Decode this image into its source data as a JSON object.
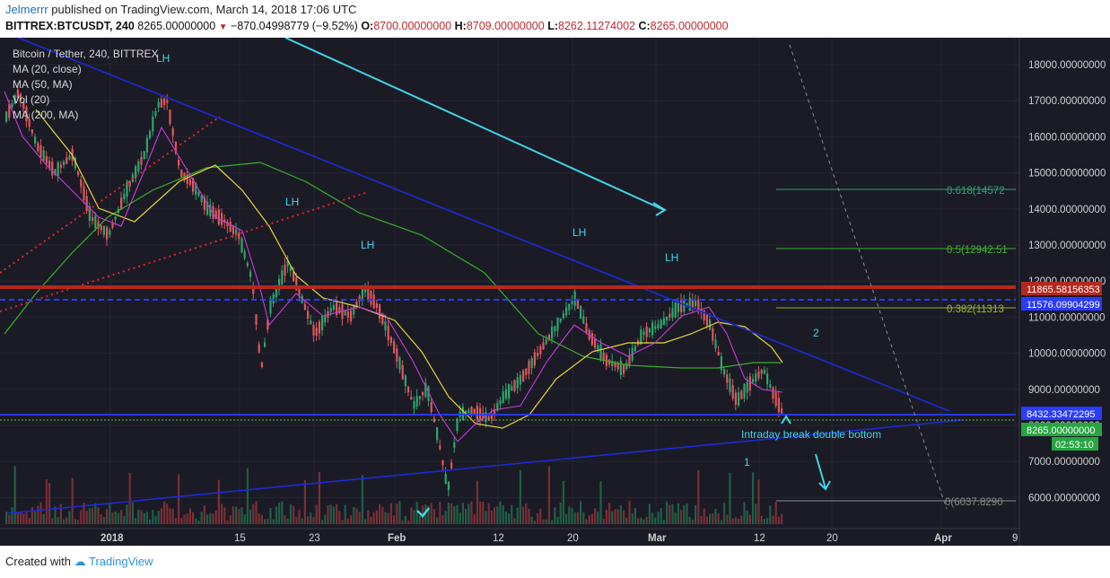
{
  "header": {
    "author": "Jelmerrr",
    "published_text": "published on TradingView.com, March 14, 2018 17:06 UTC",
    "symbol": "BITTREX:BTCUSDT, 240",
    "last_price": "8265.00000000",
    "change": "−870.04998779 (−9.52%)",
    "open_label": "O:",
    "open_value": "8700.00000000",
    "high_label": "H:",
    "high_value": "8709.00000000",
    "low_label": "L:",
    "low_value": "8262.11274002",
    "close_label": "C:",
    "close_value": "8265.00000000"
  },
  "legend": {
    "title": "Bitcoin / Tether, 240, BITTREX",
    "items": [
      "MA (20, close)",
      "MA (50, MA)",
      "Vol (20)",
      "MA (200, MA)"
    ]
  },
  "price_axis": {
    "ticks": [
      "18000.00000000",
      "17000.00000000",
      "16000.00000000",
      "15000.00000000",
      "14000.00000000",
      "13000.00000000",
      "12000.00000000",
      "11000.00000000",
      "10000.00000000",
      "9000.00000000",
      "8000.00000000",
      "7000.00000000",
      "6000.00000000"
    ],
    "level_red": "11865.58156353",
    "level_blue_upper": "11576.09904299",
    "level_blue_lower": "8432.33472295",
    "last_price": "8265.00000000",
    "countdown": "02:53:10"
  },
  "time_axis": {
    "ticks": [
      "2018",
      "15",
      "23",
      "Feb",
      "12",
      "20",
      "Mar",
      "12",
      "20",
      "Apr",
      "9"
    ]
  },
  "annotations": {
    "lh_labels": [
      "LH",
      "LH",
      "LH",
      "LH",
      "LH"
    ],
    "fib_618": "0.618(14572",
    "fib_5": "0.5(12942.51",
    "fib_382": "0.382(11313",
    "fib_0": "0(6037.8290",
    "wave_2": "2",
    "wave_1": "1",
    "note": "Intraday break double bottom"
  },
  "colors": {
    "background": "#1b1b26",
    "up": "#2fa56d",
    "down": "#e0575a",
    "trend_blue": "#1c2ad8",
    "cyan": "#3ed6e6",
    "resistance_red": "#b4281e",
    "ma_yellow": "#e3d63a",
    "ma_green": "#37b02b",
    "ma_magenta": "#c93bd8"
  },
  "footer": {
    "created_with": "Created with",
    "brand": "TradingView"
  }
}
